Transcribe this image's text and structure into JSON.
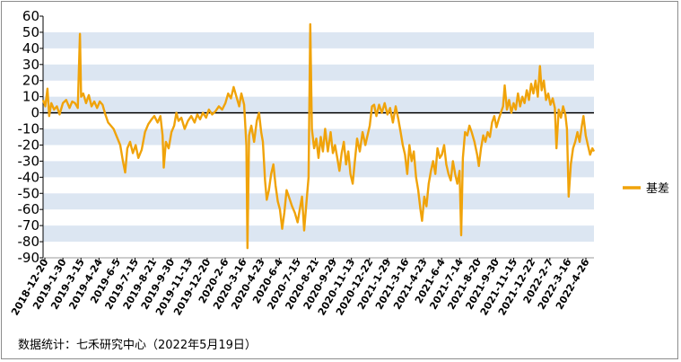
{
  "chart_data": {
    "type": "line",
    "title": "",
    "xlabel": "",
    "ylabel": "",
    "ylim": [
      -90,
      60
    ],
    "yticks": [
      60,
      50,
      40,
      30,
      20,
      10,
      0,
      -10,
      -20,
      -30,
      -40,
      -50,
      -60,
      -70,
      -80,
      -90
    ],
    "xticks": [
      "2018-12-20",
      "2019-1-30",
      "2019-3-15",
      "2019-4-24",
      "2019-6-5",
      "2019-7-15",
      "2019-8-21",
      "2019-9-30",
      "2019-11-13",
      "2019-12-20",
      "2020-2-6",
      "2020-3-16",
      "2020-4-23",
      "2020-6-4",
      "2020-7-15",
      "2020-8-21",
      "2020-9-29",
      "2020-11-13",
      "2020-12-22",
      "2021-1-29",
      "2021-3-16",
      "2021-4-23",
      "2021-6-4",
      "2021-7-14",
      "2021-8-20",
      "2021-9-30",
      "2021-11-15",
      "2021-12-22",
      "2022-2-7",
      "2022-3-16",
      "2022-4-26"
    ],
    "grid": "horizontal-bands",
    "legend": "right",
    "series": [
      {
        "name": "基差",
        "color": "#f0a30a",
        "points": [
          [
            0,
            8
          ],
          [
            0.4,
            4
          ],
          [
            0.8,
            15
          ],
          [
            1.1,
            -2
          ],
          [
            1.5,
            6
          ],
          [
            2,
            2
          ],
          [
            2.5,
            4
          ],
          [
            3,
            -1
          ],
          [
            3.6,
            6
          ],
          [
            4.2,
            8
          ],
          [
            4.8,
            3
          ],
          [
            5.3,
            7
          ],
          [
            5.8,
            6
          ],
          [
            6.3,
            3
          ],
          [
            6.7,
            49
          ],
          [
            6.9,
            10
          ],
          [
            7.3,
            12
          ],
          [
            7.8,
            6
          ],
          [
            8.3,
            11
          ],
          [
            8.8,
            4
          ],
          [
            9.3,
            7
          ],
          [
            9.8,
            3
          ],
          [
            10.3,
            7
          ],
          [
            10.8,
            5
          ],
          [
            11.3,
            -1
          ],
          [
            11.8,
            -6
          ],
          [
            12.3,
            -8
          ],
          [
            12.8,
            -10
          ],
          [
            13.4,
            -15
          ],
          [
            14,
            -20
          ],
          [
            14.5,
            -30
          ],
          [
            14.9,
            -37
          ],
          [
            15.3,
            -22
          ],
          [
            15.8,
            -18
          ],
          [
            16.3,
            -25
          ],
          [
            16.8,
            -20
          ],
          [
            17.3,
            -28
          ],
          [
            17.9,
            -23
          ],
          [
            18.5,
            -12
          ],
          [
            19.1,
            -7
          ],
          [
            19.7,
            -4
          ],
          [
            20.2,
            -2
          ],
          [
            20.8,
            -6
          ],
          [
            21.3,
            -2
          ],
          [
            21.7,
            -14
          ],
          [
            21.9,
            -34
          ],
          [
            22.3,
            -18
          ],
          [
            22.8,
            -22
          ],
          [
            23.3,
            -12
          ],
          [
            23.8,
            -8
          ],
          [
            24.2,
            0
          ],
          [
            24.6,
            -5
          ],
          [
            25.1,
            -3
          ],
          [
            25.7,
            -10
          ],
          [
            26.3,
            -5
          ],
          [
            26.9,
            -2
          ],
          [
            27.5,
            -6
          ],
          [
            28,
            -1
          ],
          [
            28.5,
            -4
          ],
          [
            29,
            0
          ],
          [
            29.6,
            -3
          ],
          [
            30.1,
            2
          ],
          [
            30.7,
            -1
          ],
          [
            31.3,
            1
          ],
          [
            31.9,
            4
          ],
          [
            32.5,
            2
          ],
          [
            33.1,
            6
          ],
          [
            33.6,
            12
          ],
          [
            34.1,
            9
          ],
          [
            34.6,
            16
          ],
          [
            35.1,
            10
          ],
          [
            35.6,
            4
          ],
          [
            36,
            12
          ],
          [
            36.5,
            5
          ],
          [
            36.9,
            -20
          ],
          [
            37.1,
            -84
          ],
          [
            37.4,
            -14
          ],
          [
            37.8,
            -8
          ],
          [
            38.3,
            -18
          ],
          [
            38.8,
            -5
          ],
          [
            39.2,
            0
          ],
          [
            39.6,
            -12
          ],
          [
            39.9,
            -18
          ],
          [
            40.3,
            -42
          ],
          [
            40.6,
            -54
          ],
          [
            41,
            -48
          ],
          [
            41.4,
            -38
          ],
          [
            41.8,
            -32
          ],
          [
            42.2,
            -45
          ],
          [
            42.6,
            -55
          ],
          [
            43,
            -60
          ],
          [
            43.4,
            -72
          ],
          [
            43.8,
            -62
          ],
          [
            44.2,
            -48
          ],
          [
            44.7,
            -53
          ],
          [
            45.2,
            -58
          ],
          [
            45.7,
            -62
          ],
          [
            46.2,
            -68
          ],
          [
            46.6,
            -60
          ],
          [
            47,
            -52
          ],
          [
            47.4,
            -73
          ],
          [
            47.8,
            -56
          ],
          [
            48.2,
            -40
          ],
          [
            48.5,
            55
          ],
          [
            48.8,
            -10
          ],
          [
            49.2,
            -22
          ],
          [
            49.6,
            -16
          ],
          [
            50,
            -28
          ],
          [
            50.4,
            -15
          ],
          [
            50.8,
            -24
          ],
          [
            51.2,
            -10
          ],
          [
            51.7,
            -24
          ],
          [
            52.2,
            -12
          ],
          [
            52.6,
            -25
          ],
          [
            53,
            -20
          ],
          [
            53.4,
            -28
          ],
          [
            53.8,
            -36
          ],
          [
            54.2,
            -25
          ],
          [
            54.6,
            -18
          ],
          [
            55,
            -32
          ],
          [
            55.4,
            -24
          ],
          [
            55.8,
            -38
          ],
          [
            56.2,
            -44
          ],
          [
            56.6,
            -30
          ],
          [
            57,
            -16
          ],
          [
            57.5,
            -24
          ],
          [
            58,
            -12
          ],
          [
            58.5,
            -20
          ],
          [
            58.9,
            -14
          ],
          [
            59.3,
            -8
          ],
          [
            59.7,
            4
          ],
          [
            60.1,
            5
          ],
          [
            60.5,
            -2
          ],
          [
            61,
            5
          ],
          [
            61.5,
            0
          ],
          [
            62,
            6
          ],
          [
            62.5,
            -1
          ],
          [
            63,
            3
          ],
          [
            63.5,
            -6
          ],
          [
            64,
            4
          ],
          [
            64.5,
            -4
          ],
          [
            64.9,
            -12
          ],
          [
            65.3,
            -20
          ],
          [
            65.7,
            -26
          ],
          [
            66.1,
            -38
          ],
          [
            66.5,
            -20
          ],
          [
            66.9,
            -30
          ],
          [
            67.3,
            -24
          ],
          [
            67.7,
            -40
          ],
          [
            68.1,
            -48
          ],
          [
            68.5,
            -60
          ],
          [
            68.8,
            -67
          ],
          [
            69.2,
            -52
          ],
          [
            69.6,
            -58
          ],
          [
            70,
            -44
          ],
          [
            70.4,
            -36
          ],
          [
            70.8,
            -30
          ],
          [
            71.2,
            -38
          ],
          [
            71.6,
            -22
          ],
          [
            72,
            -28
          ],
          [
            72.4,
            -26
          ],
          [
            72.8,
            -20
          ],
          [
            73.2,
            -32
          ],
          [
            73.6,
            -38
          ],
          [
            74,
            -42
          ],
          [
            74.4,
            -30
          ],
          [
            74.8,
            -38
          ],
          [
            75.2,
            -44
          ],
          [
            75.6,
            -36
          ],
          [
            75.9,
            -76
          ],
          [
            76.2,
            -28
          ],
          [
            76.6,
            -12
          ],
          [
            77,
            -14
          ],
          [
            77.4,
            -8
          ],
          [
            77.8,
            -12
          ],
          [
            78.3,
            -18
          ],
          [
            78.8,
            -26
          ],
          [
            79.1,
            -33
          ],
          [
            79.5,
            -22
          ],
          [
            79.9,
            -14
          ],
          [
            80.3,
            -18
          ],
          [
            80.7,
            -12
          ],
          [
            81.1,
            -15
          ],
          [
            81.5,
            -6
          ],
          [
            81.9,
            -2
          ],
          [
            82.3,
            -9
          ],
          [
            82.7,
            -4
          ],
          [
            83.1,
            0
          ],
          [
            83.5,
            4
          ],
          [
            83.8,
            17
          ],
          [
            84.2,
            2
          ],
          [
            84.6,
            8
          ],
          [
            85,
            0
          ],
          [
            85.4,
            6
          ],
          [
            85.8,
            2
          ],
          [
            86.2,
            12
          ],
          [
            86.6,
            4
          ],
          [
            87,
            10
          ],
          [
            87.4,
            6
          ],
          [
            87.8,
            14
          ],
          [
            88.2,
            8
          ],
          [
            88.6,
            18
          ],
          [
            89,
            12
          ],
          [
            89.4,
            20
          ],
          [
            89.8,
            10
          ],
          [
            90.2,
            29
          ],
          [
            90.5,
            14
          ],
          [
            90.9,
            20
          ],
          [
            91.3,
            8
          ],
          [
            91.7,
            12
          ],
          [
            92.1,
            5
          ],
          [
            92.5,
            9
          ],
          [
            92.9,
            3
          ],
          [
            93.2,
            -22
          ],
          [
            93.6,
            2
          ],
          [
            94,
            -3
          ],
          [
            94.4,
            4
          ],
          [
            94.8,
            -1
          ],
          [
            95.1,
            -10
          ],
          [
            95.4,
            -52
          ],
          [
            95.8,
            -32
          ],
          [
            96.2,
            -22
          ],
          [
            96.6,
            -18
          ],
          [
            97,
            -12
          ],
          [
            97.4,
            -18
          ],
          [
            97.8,
            -8
          ],
          [
            98.1,
            -2
          ],
          [
            98.5,
            -14
          ],
          [
            98.9,
            -20
          ],
          [
            99.3,
            -26
          ],
          [
            99.7,
            -22
          ],
          [
            100,
            -24
          ]
        ]
      }
    ]
  },
  "source": "数据统计：七禾研究中心（2022年5月19日）"
}
